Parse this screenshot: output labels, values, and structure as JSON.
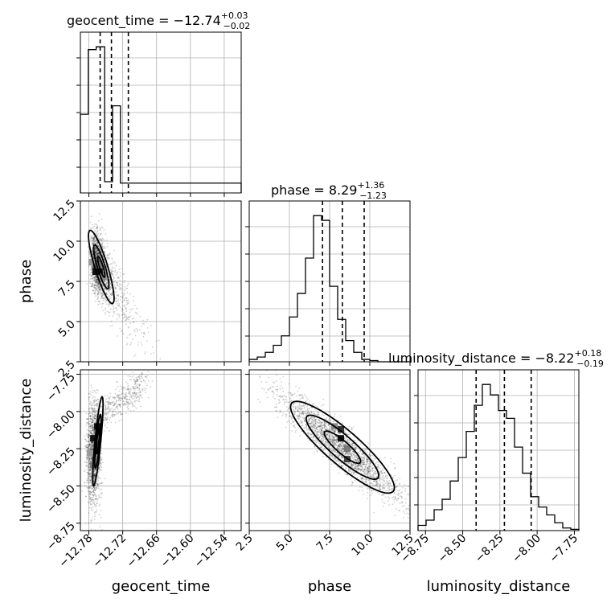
{
  "chart_data": {
    "type": "corner",
    "parameters": [
      "geocent_time",
      "phase",
      "luminosity_distance"
    ],
    "titles": [
      {
        "parameter": "geocent_time",
        "median": "−12.74",
        "plus": "+0.03",
        "minus": "−0.02",
        "prefix": "geocent_time = "
      },
      {
        "parameter": "phase",
        "median": "8.29",
        "plus": "+1.36",
        "minus": "−1.23",
        "prefix": "phase = "
      },
      {
        "parameter": "luminosity_distance",
        "median": "−8.22",
        "plus": "+0.18",
        "minus": "−0.19",
        "prefix": "luminosity_distance = "
      }
    ],
    "axes": {
      "geocent_time": {
        "range": [
          -12.795,
          -12.51
        ],
        "ticks": [
          -12.78,
          -12.72,
          -12.66,
          -12.6,
          -12.54
        ],
        "tick_labels": [
          "−12.78",
          "−12.72",
          "−12.66",
          "−12.60",
          "−12.54"
        ],
        "label": "geocent_time"
      },
      "phase": {
        "range": [
          2.5,
          12.5
        ],
        "ticks": [
          2.5,
          5.0,
          7.5,
          10.0,
          12.5
        ],
        "tick_labels": [
          "2.5",
          "5.0",
          "7.5",
          "10.0",
          "12.5"
        ],
        "label": "phase"
      },
      "luminosity_distance": {
        "range": [
          -8.8,
          -7.72
        ],
        "ticks": [
          -8.75,
          -8.5,
          -8.25,
          -8.0,
          -7.75
        ],
        "tick_labels": [
          "−8.75",
          "−8.50",
          "−8.25",
          "−8.00",
          "−7.75"
        ],
        "label": "luminosity_distance"
      }
    },
    "quantiles": {
      "geocent_time": [
        -12.76,
        -12.74,
        -12.71
      ],
      "phase": [
        7.06,
        8.29,
        9.65
      ],
      "luminosity_distance": [
        -8.41,
        -8.22,
        -8.04
      ]
    },
    "histograms": {
      "geocent_time": {
        "bin_edges": [
          -12.795,
          -12.781,
          -12.767,
          -12.752,
          -12.738,
          -12.724,
          -12.71,
          -12.696,
          -12.681,
          -12.667,
          -12.653,
          -12.639,
          -12.625,
          -12.61,
          -12.596,
          -12.582,
          -12.568,
          -12.553,
          -12.539,
          -12.525,
          -12.51
        ],
        "counts": [
          2.8,
          5.1,
          5.2,
          0.4,
          3.1,
          0.35,
          0.35,
          0.35,
          0.35,
          0.35,
          0.35,
          0.35,
          0.35,
          0.35,
          0.35,
          0.35,
          0.35,
          0.35,
          0.35,
          0.35
        ]
      },
      "phase": {
        "bin_edges": [
          2.5,
          3.0,
          3.5,
          4.0,
          4.5,
          5.0,
          5.5,
          6.0,
          6.5,
          7.0,
          7.5,
          8.0,
          8.5,
          9.0,
          9.5,
          10.0,
          10.5,
          11.0,
          11.5,
          12.0,
          12.5
        ],
        "counts": [
          0.1,
          0.2,
          0.4,
          0.7,
          1.1,
          1.9,
          2.9,
          4.4,
          6.2,
          6.0,
          3.2,
          1.8,
          0.9,
          0.4,
          0.1,
          0.05,
          0.0,
          0.0,
          0.0,
          0.0
        ]
      },
      "luminosity_distance": {
        "bin_edges": [
          -8.8,
          -8.746,
          -8.692,
          -8.638,
          -8.584,
          -8.53,
          -8.476,
          -8.422,
          -8.368,
          -8.314,
          -8.26,
          -8.206,
          -8.152,
          -8.098,
          -8.044,
          -7.99,
          -7.936,
          -7.882,
          -7.828,
          -7.774,
          -7.72
        ],
        "counts": [
          0.2,
          0.4,
          0.8,
          1.2,
          1.9,
          2.8,
          3.8,
          4.8,
          5.6,
          5.2,
          4.6,
          4.3,
          3.2,
          2.2,
          1.3,
          0.9,
          0.6,
          0.3,
          0.1,
          0.05
        ]
      }
    },
    "pairs": [
      {
        "x": "geocent_time",
        "y": "phase",
        "correlation": "negative",
        "mode": [
          -12.76,
          8.0
        ]
      },
      {
        "x": "geocent_time",
        "y": "luminosity_distance",
        "correlation": "curved",
        "mode": [
          -12.764,
          -8.2
        ]
      },
      {
        "x": "phase",
        "y": "luminosity_distance",
        "correlation": "negative",
        "mode": [
          8.2,
          -8.25
        ]
      }
    ],
    "grid": true
  }
}
